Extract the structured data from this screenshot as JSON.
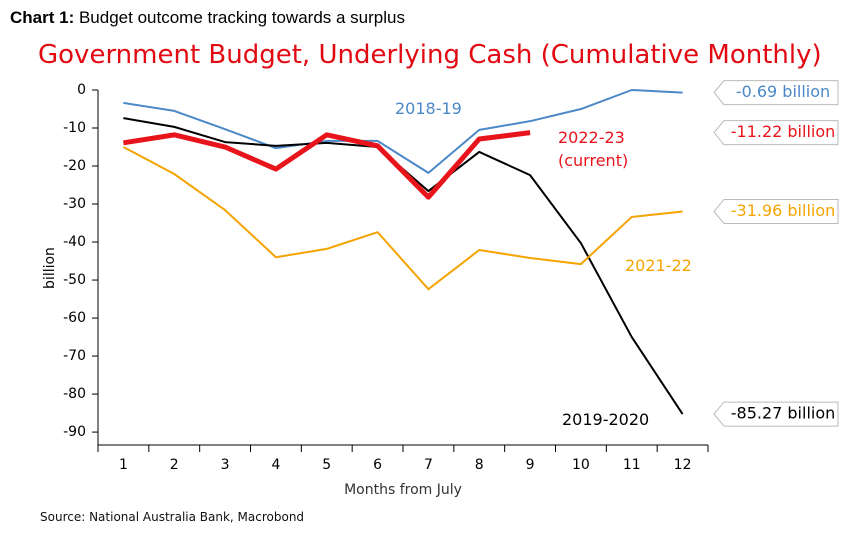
{
  "chart_data": {
    "type": "line",
    "header_label": "Chart 1:",
    "header_text": "Budget outcome tracking towards a surplus",
    "title": "Government Budget, Underlying Cash (Cumulative Monthly)",
    "y_label": "billion",
    "x_label": "Months from July",
    "source": "Source: National Australia Bank, Macrobond",
    "categories": [
      "1",
      "2",
      "3",
      "4",
      "5",
      "6",
      "7",
      "8",
      "9",
      "10",
      "11",
      "12"
    ],
    "ylim": [
      -93.4,
      0
    ],
    "yticks": [
      0,
      -10,
      -20,
      -30,
      -40,
      -50,
      -60,
      -70,
      -80,
      -90
    ],
    "series": [
      {
        "name": "2018-19",
        "color": "#4a88c8",
        "width": 2,
        "values": [
          -3.4,
          -5.5,
          -10.3,
          -15.3,
          -13.4,
          -13.4,
          -21.8,
          -10.5,
          -8.2,
          -5,
          0,
          -0.69
        ],
        "value_labels": [
          null,
          null,
          null,
          null,
          null,
          null,
          null,
          null,
          null,
          null,
          null,
          "-0.69 billion"
        ]
      },
      {
        "name": "2019-2020",
        "color": "#000000",
        "width": 2,
        "values": [
          -7.4,
          -9.7,
          -13.7,
          -14.7,
          -13.9,
          -15,
          -26.6,
          -16.3,
          -22.4,
          -40.3,
          -65,
          -85.27
        ],
        "value_labels": [
          null,
          null,
          null,
          null,
          null,
          null,
          null,
          null,
          null,
          null,
          null,
          "-85.27 billion"
        ]
      },
      {
        "name": "2021-22",
        "color": "#f5a300",
        "width": 2,
        "values": [
          -15,
          -22.1,
          -31.6,
          -44,
          -41.8,
          -37.4,
          -52.4,
          -42.1,
          -44.2,
          -45.8,
          -33.4,
          -31.96
        ],
        "value_labels": [
          null,
          null,
          null,
          null,
          null,
          null,
          null,
          null,
          null,
          null,
          null,
          "-31.96 billion"
        ]
      },
      {
        "name": "2022-23 (current)",
        "color": "#e8141b",
        "width": 5,
        "values": [
          -13.9,
          -11.8,
          -15,
          -20.8,
          -11.8,
          -14.7,
          -28.2,
          -12.9,
          -11.22,
          null,
          null,
          null
        ],
        "value_labels": [
          null,
          null,
          null,
          null,
          null,
          null,
          null,
          null,
          "-11.22 billion",
          null,
          null,
          null
        ]
      }
    ]
  }
}
